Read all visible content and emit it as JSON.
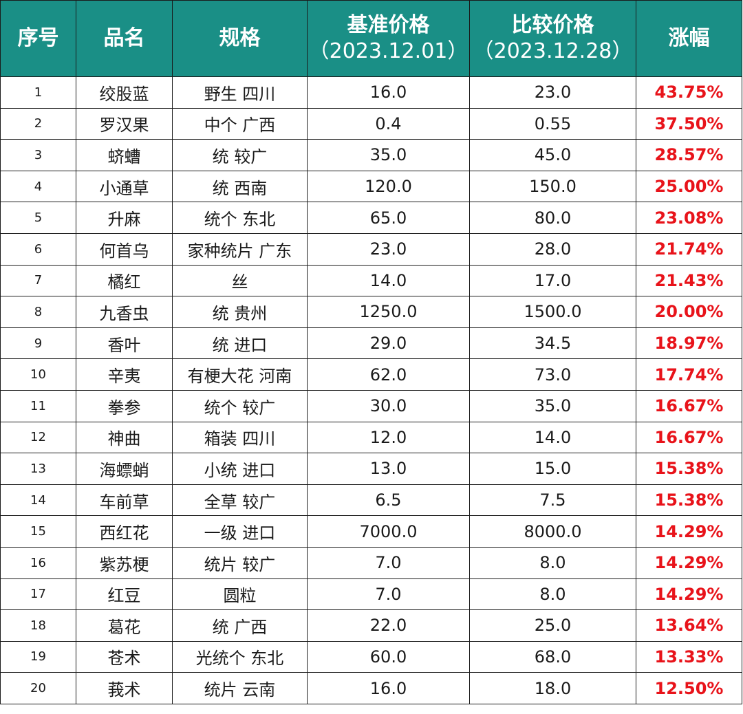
{
  "chart_data": {
    "type": "table",
    "headers": {
      "index": "序号",
      "name": "品名",
      "spec": "规格",
      "base_price": "基准价格",
      "base_date": "（2023.12.01）",
      "compare_price": "比较价格",
      "compare_date": "（2023.12.28）",
      "change": "涨幅"
    },
    "rows": [
      {
        "idx": "1",
        "name": "绞股蓝",
        "spec": "野生 四川",
        "base": "16.0",
        "compare": "23.0",
        "change": "43.75%"
      },
      {
        "idx": "2",
        "name": "罗汉果",
        "spec": "中个 广西",
        "base": "0.4",
        "compare": "0.55",
        "change": "37.50%"
      },
      {
        "idx": "3",
        "name": "蛴螬",
        "spec": "统 较广",
        "base": "35.0",
        "compare": "45.0",
        "change": "28.57%"
      },
      {
        "idx": "4",
        "name": "小通草",
        "spec": "统 西南",
        "base": "120.0",
        "compare": "150.0",
        "change": "25.00%"
      },
      {
        "idx": "5",
        "name": "升麻",
        "spec": "统个 东北",
        "base": "65.0",
        "compare": "80.0",
        "change": "23.08%"
      },
      {
        "idx": "6",
        "name": "何首乌",
        "spec": "家种统片 广东",
        "base": "23.0",
        "compare": "28.0",
        "change": "21.74%"
      },
      {
        "idx": "7",
        "name": "橘红",
        "spec": "丝",
        "base": "14.0",
        "compare": "17.0",
        "change": "21.43%"
      },
      {
        "idx": "8",
        "name": "九香虫",
        "spec": "统 贵州",
        "base": "1250.0",
        "compare": "1500.0",
        "change": "20.00%"
      },
      {
        "idx": "9",
        "name": "香叶",
        "spec": "统 进口",
        "base": "29.0",
        "compare": "34.5",
        "change": "18.97%"
      },
      {
        "idx": "10",
        "name": "辛夷",
        "spec": "有梗大花 河南",
        "base": "62.0",
        "compare": "73.0",
        "change": "17.74%"
      },
      {
        "idx": "11",
        "name": "拳参",
        "spec": "统个 较广",
        "base": "30.0",
        "compare": "35.0",
        "change": "16.67%"
      },
      {
        "idx": "12",
        "name": "神曲",
        "spec": "箱装 四川",
        "base": "12.0",
        "compare": "14.0",
        "change": "16.67%"
      },
      {
        "idx": "13",
        "name": "海螵蛸",
        "spec": "小统 进口",
        "base": "13.0",
        "compare": "15.0",
        "change": "15.38%"
      },
      {
        "idx": "14",
        "name": "车前草",
        "spec": "全草 较广",
        "base": "6.5",
        "compare": "7.5",
        "change": "15.38%"
      },
      {
        "idx": "15",
        "name": "西红花",
        "spec": "一级 进口",
        "base": "7000.0",
        "compare": "8000.0",
        "change": "14.29%"
      },
      {
        "idx": "16",
        "name": "紫苏梗",
        "spec": "统片 较广",
        "base": "7.0",
        "compare": "8.0",
        "change": "14.29%"
      },
      {
        "idx": "17",
        "name": "红豆",
        "spec": "圆粒",
        "base": "7.0",
        "compare": "8.0",
        "change": "14.29%"
      },
      {
        "idx": "18",
        "name": "葛花",
        "spec": "统 广西",
        "base": "22.0",
        "compare": "25.0",
        "change": "13.64%"
      },
      {
        "idx": "19",
        "name": "苍术",
        "spec": "光统个 东北",
        "base": "60.0",
        "compare": "68.0",
        "change": "13.33%"
      },
      {
        "idx": "20",
        "name": "莪术",
        "spec": "统片 云南",
        "base": "16.0",
        "compare": "18.0",
        "change": "12.50%"
      }
    ]
  },
  "colors": {
    "header_bg": "#1a8f86",
    "header_text": "#ffffff",
    "change_text": "#e8131a",
    "border": "#1a1a1a"
  }
}
